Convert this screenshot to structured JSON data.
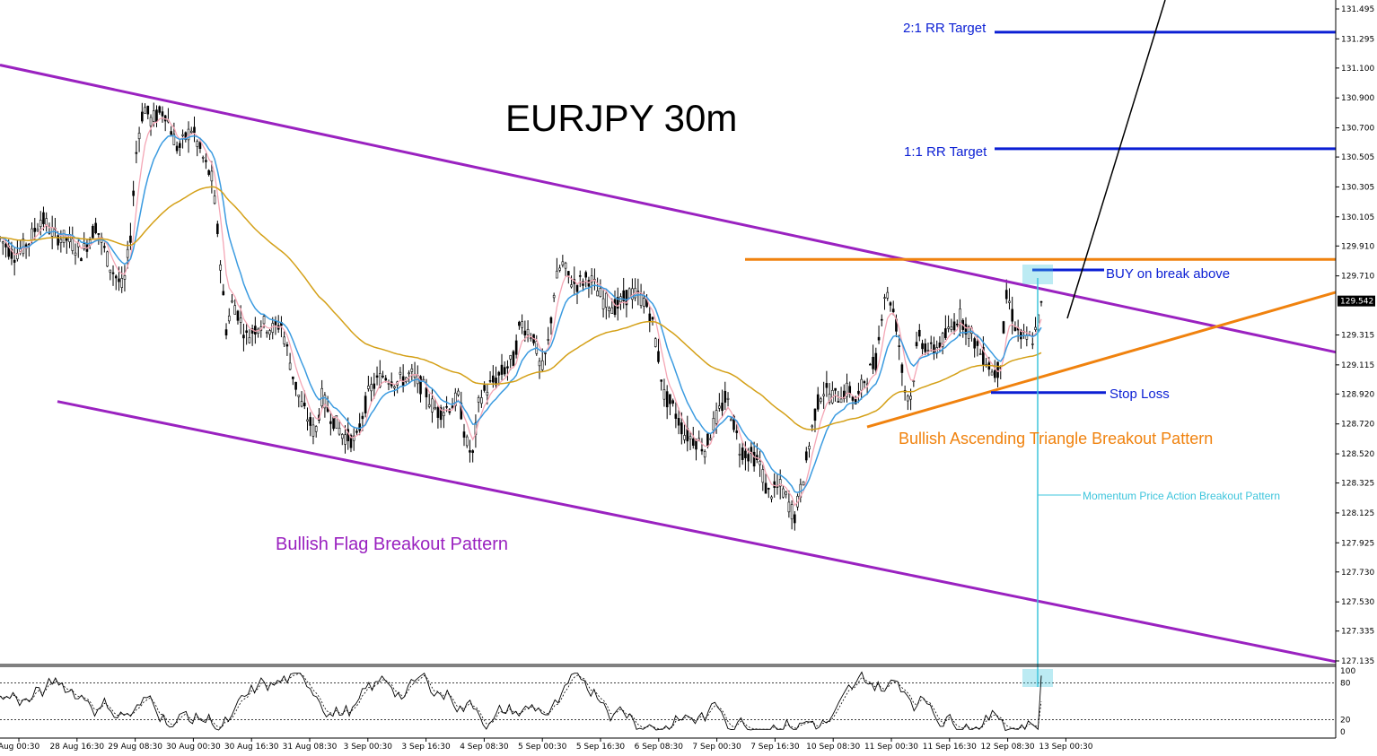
{
  "chart_data": [
    {
      "type": "candlestick",
      "title": "EURJPY 30m",
      "symbol": "EURJPY",
      "timeframe": "30m",
      "ylim": [
        127.135,
        131.495
      ],
      "y_ticks": [
        "131.495",
        "131.295",
        "131.100",
        "130.900",
        "130.700",
        "130.505",
        "130.305",
        "130.105",
        "129.910",
        "129.710",
        "129.315",
        "129.115",
        "128.920",
        "128.720",
        "128.520",
        "128.325",
        "128.125",
        "127.925",
        "127.730",
        "127.530",
        "127.335",
        "127.135"
      ],
      "current_price": "129.542",
      "x_ticks": [
        "Aug 00:30",
        "28 Aug 16:30",
        "29 Aug 08:30",
        "30 Aug 00:30",
        "30 Aug 16:30",
        "31 Aug 08:30",
        "3 Sep 00:30",
        "3 Sep 16:30",
        "4 Sep 08:30",
        "5 Sep 00:30",
        "5 Sep 16:30",
        "6 Sep 08:30",
        "7 Sep 00:30",
        "7 Sep 16:30",
        "10 Sep 08:30",
        "11 Sep 00:30",
        "11 Sep 16:30",
        "12 Sep 08:30",
        "13 Sep 00:30"
      ],
      "price_path": [
        [
          0,
          129.96
        ],
        [
          0.01,
          129.85
        ],
        [
          0.02,
          129.92
        ],
        [
          0.03,
          130.1
        ],
        [
          0.04,
          129.98
        ],
        [
          0.05,
          129.95
        ],
        [
          0.06,
          129.86
        ],
        [
          0.07,
          130.05
        ],
        [
          0.08,
          129.78
        ],
        [
          0.09,
          129.62
        ],
        [
          0.095,
          129.95
        ],
        [
          0.1,
          130.6
        ],
        [
          0.105,
          130.85
        ],
        [
          0.11,
          130.75
        ],
        [
          0.12,
          130.82
        ],
        [
          0.13,
          130.55
        ],
        [
          0.14,
          130.7
        ],
        [
          0.15,
          130.45
        ],
        [
          0.155,
          130.35
        ],
        [
          0.16,
          129.9
        ],
        [
          0.165,
          129.35
        ],
        [
          0.17,
          129.55
        ],
        [
          0.18,
          129.3
        ],
        [
          0.19,
          129.4
        ],
        [
          0.2,
          129.35
        ],
        [
          0.205,
          129.4
        ],
        [
          0.21,
          129.2
        ],
        [
          0.215,
          129.0
        ],
        [
          0.22,
          128.85
        ],
        [
          0.225,
          128.75
        ],
        [
          0.23,
          128.65
        ],
        [
          0.235,
          128.9
        ],
        [
          0.24,
          128.8
        ],
        [
          0.25,
          128.65
        ],
        [
          0.26,
          128.6
        ],
        [
          0.265,
          128.8
        ],
        [
          0.27,
          128.95
        ],
        [
          0.28,
          129.05
        ],
        [
          0.29,
          129.0
        ],
        [
          0.3,
          129.05
        ],
        [
          0.31,
          128.95
        ],
        [
          0.315,
          128.85
        ],
        [
          0.32,
          128.8
        ],
        [
          0.33,
          128.85
        ],
        [
          0.335,
          128.9
        ],
        [
          0.34,
          128.6
        ],
        [
          0.345,
          128.5
        ],
        [
          0.35,
          128.9
        ],
        [
          0.36,
          129.0
        ],
        [
          0.37,
          129.1
        ],
        [
          0.375,
          129.15
        ],
        [
          0.38,
          129.4
        ],
        [
          0.39,
          129.3
        ],
        [
          0.395,
          129.05
        ],
        [
          0.4,
          129.25
        ],
        [
          0.405,
          129.65
        ],
        [
          0.41,
          129.8
        ],
        [
          0.415,
          129.7
        ],
        [
          0.42,
          129.65
        ],
        [
          0.43,
          129.7
        ],
        [
          0.44,
          129.55
        ],
        [
          0.45,
          129.5
        ],
        [
          0.46,
          129.6
        ],
        [
          0.47,
          129.55
        ],
        [
          0.475,
          129.45
        ],
        [
          0.48,
          129.2
        ],
        [
          0.485,
          128.9
        ],
        [
          0.49,
          128.85
        ],
        [
          0.5,
          128.65
        ],
        [
          0.51,
          128.6
        ],
        [
          0.515,
          128.55
        ],
        [
          0.52,
          128.7
        ],
        [
          0.53,
          128.9
        ],
        [
          0.535,
          128.75
        ],
        [
          0.54,
          128.55
        ],
        [
          0.55,
          128.5
        ],
        [
          0.555,
          128.45
        ],
        [
          0.56,
          128.25
        ],
        [
          0.57,
          128.3
        ],
        [
          0.575,
          128.2
        ],
        [
          0.58,
          128.1
        ],
        [
          0.585,
          128.3
        ],
        [
          0.59,
          128.55
        ],
        [
          0.595,
          128.8
        ],
        [
          0.6,
          128.95
        ],
        [
          0.61,
          128.9
        ],
        [
          0.62,
          128.95
        ],
        [
          0.625,
          128.85
        ],
        [
          0.63,
          129.0
        ],
        [
          0.64,
          129.15
        ],
        [
          0.645,
          129.6
        ],
        [
          0.65,
          129.55
        ],
        [
          0.655,
          129.35
        ],
        [
          0.66,
          128.95
        ],
        [
          0.665,
          128.9
        ],
        [
          0.67,
          129.3
        ],
        [
          0.68,
          129.2
        ],
        [
          0.69,
          129.3
        ],
        [
          0.7,
          129.45
        ],
        [
          0.71,
          129.3
        ],
        [
          0.715,
          129.2
        ],
        [
          0.72,
          129.15
        ],
        [
          0.725,
          129.05
        ],
        [
          0.73,
          129.1
        ],
        [
          0.735,
          129.6
        ],
        [
          0.74,
          129.4
        ],
        [
          0.745,
          129.3
        ],
        [
          0.75,
          129.28
        ],
        [
          0.755,
          129.3
        ],
        [
          0.76,
          129.5
        ]
      ],
      "moving_averages": [
        {
          "color": "#f4a6b5",
          "period_hint": "fast"
        },
        {
          "color": "#3b9be0",
          "period_hint": "medium"
        },
        {
          "color": "#d4a017",
          "period_hint": "slow"
        }
      ],
      "levels": [
        {
          "label": "2:1 RR Target",
          "price": 131.34,
          "color": "#0b1fd4"
        },
        {
          "label": "1:1 RR Target",
          "price": 130.56,
          "color": "#0b1fd4"
        },
        {
          "label": "BUY on break above",
          "price": 129.75,
          "color": "#0b1fd4"
        },
        {
          "label": "Stop Loss",
          "price": 128.93,
          "color": "#0b1fd4"
        }
      ],
      "patterns": [
        {
          "label": "Bullish Flag Breakout Pattern",
          "color": "#9a22c0"
        },
        {
          "label": "Bullish Ascending Triangle Breakout Pattern",
          "color": "#f0820e"
        },
        {
          "label": "Momentum Price Action Breakout Pattern",
          "color": "#3ec5dc"
        }
      ]
    },
    {
      "type": "line",
      "name": "stochastic",
      "ylim": [
        0,
        100
      ],
      "y_ticks": [
        "100",
        "80",
        "20",
        "0"
      ],
      "levels": [
        80,
        20
      ]
    }
  ],
  "colors": {
    "flag": "#9a22c0",
    "triangle": "#f0820e",
    "level": "#0b1fd4",
    "momentum": "#3ec5dc",
    "ma_fast": "#f4a6b5",
    "ma_mid": "#3b9be0",
    "ma_slow": "#d4a017"
  }
}
